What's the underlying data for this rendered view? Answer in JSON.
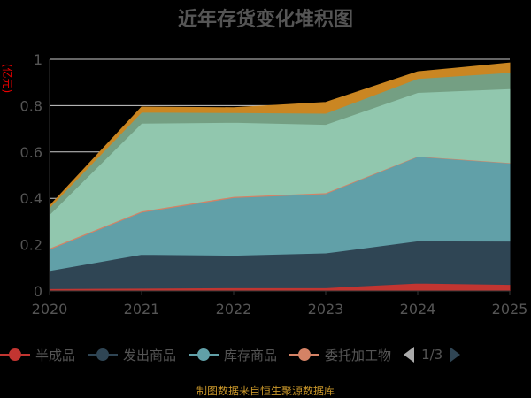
{
  "chart_data": {
    "type": "area",
    "stacked": true,
    "title": "近年存货变化堆积图",
    "ylabel": "(亿元)",
    "xlabel": "",
    "ylim": [
      0,
      1
    ],
    "yticks": [
      "0",
      "0.2",
      "0.4",
      "0.6",
      "0.8",
      "1"
    ],
    "categories": [
      "2020",
      "2021",
      "2022",
      "2023",
      "2024",
      "2025"
    ],
    "grid": true,
    "legend_position": "bottom",
    "legend_page": "1/3",
    "series": [
      {
        "name": "半成品",
        "color": "#c23531",
        "values": [
          0.01,
          0.012,
          0.014,
          0.014,
          0.034,
          0.028
        ]
      },
      {
        "name": "发出商品",
        "color": "#2f4554",
        "values": [
          0.078,
          0.146,
          0.14,
          0.15,
          0.182,
          0.187
        ]
      },
      {
        "name": "库存商品",
        "color": "#61a0a8",
        "values": [
          0.092,
          0.182,
          0.249,
          0.256,
          0.364,
          0.337
        ]
      },
      {
        "name": "委托加工物",
        "color": "#d48265",
        "values": [
          0.005,
          0.005,
          0.005,
          0.004,
          0.002,
          0.002
        ]
      },
      {
        "name": "",
        "color": "#91c7ae",
        "values": [
          0.145,
          0.379,
          0.32,
          0.295,
          0.275,
          0.319
        ]
      },
      {
        "name": "",
        "color": "#749f83",
        "values": [
          0.03,
          0.048,
          0.042,
          0.048,
          0.06,
          0.07
        ]
      },
      {
        "name": "",
        "color": "#ca8622",
        "values": [
          0.007,
          0.022,
          0.021,
          0.047,
          0.029,
          0.041
        ]
      }
    ]
  },
  "footer": "制图数据来自恒生聚源数据库"
}
